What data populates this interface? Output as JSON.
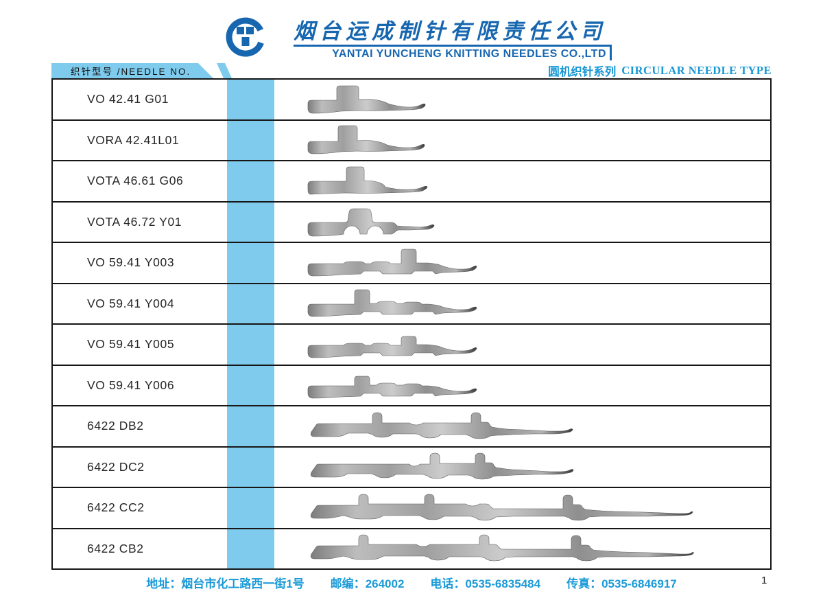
{
  "brand": {
    "company_cn": "烟台运成制针有限责任公司",
    "company_en": "YANTAI YUNCHENG KNITTING NEEDLES CO.,LTD"
  },
  "header": {
    "left_label": "织针型号 /NEEDLE NO.",
    "right_cn": "圆机织针系列",
    "right_en": "CIRCULAR NEEDLE TYPE"
  },
  "colors": {
    "royal_blue": "#1766b0",
    "cyan_blue": "#1a9ad8",
    "light_blue": "#7fcbed",
    "line_black": "#161616"
  },
  "table": {
    "rows": [
      {
        "model": "VO 42.41 G01",
        "shape": "a1"
      },
      {
        "model": "VORA 42.41L01",
        "shape": "a2"
      },
      {
        "model": "VOTA 46.61 G06",
        "shape": "b"
      },
      {
        "model": "VOTA 46.72 Y01",
        "shape": "c"
      },
      {
        "model": "VO 59.41 Y003",
        "shape": "d1"
      },
      {
        "model": "VO 59.41 Y004",
        "shape": "d2"
      },
      {
        "model": "VO 59.41 Y005",
        "shape": "d3"
      },
      {
        "model": "VO 59.41 Y006",
        "shape": "d4"
      },
      {
        "model": "6422 DB2",
        "shape": "e1"
      },
      {
        "model": "6422 DC2",
        "shape": "e2"
      },
      {
        "model": "6422 CC2",
        "shape": "f1"
      },
      {
        "model": "6422 CB2",
        "shape": "f2"
      }
    ]
  },
  "footer": {
    "address_label": "地址：",
    "address": "烟台市化工路西一街1号",
    "zip_label": "邮编：",
    "zip": "264002",
    "tel_label": "电话：",
    "tel": "0535-6835484",
    "fax_label": "传真：",
    "fax": "0535-6846917",
    "page": "1"
  }
}
